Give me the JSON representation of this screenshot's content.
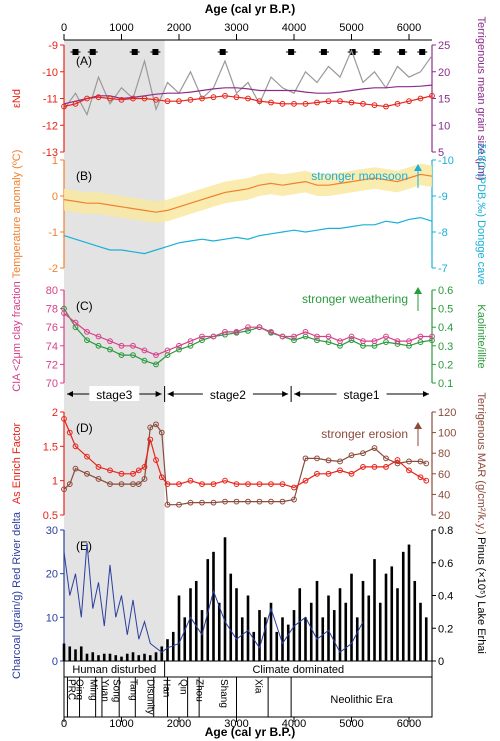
{
  "figure": {
    "x_axis": {
      "label_top": "Age (cal yr B.P.)",
      "label_bottom": "Age (cal yr B.P.)",
      "range": [
        0,
        6400
      ],
      "ticks": [
        0,
        1000,
        2000,
        3000,
        4000,
        5000,
        6000
      ],
      "tick_labels": [
        "0",
        "1000",
        "2000",
        "3000",
        "4000",
        "5000",
        "6000"
      ]
    },
    "shaded_band": {
      "from": 0,
      "to": 1750,
      "color": "#e3e3e3"
    },
    "dating_markers": [
      200,
      500,
      1230,
      1590,
      2760,
      3950,
      4520,
      5020,
      5440,
      5880,
      6230
    ],
    "stage_labels": [
      "stage3",
      "stage2",
      "stage1"
    ]
  },
  "panels": {
    "A": {
      "label": "(A)",
      "left_axis": {
        "label": "εNd",
        "color": "#e8231a",
        "range": [
          -13,
          -9
        ],
        "ticks": [
          "-9",
          "-10",
          "-11",
          "-12",
          "-13"
        ]
      },
      "right_axis": {
        "label": "Terrigenous mean grain size (μm)",
        "color": "#8b2d8b",
        "range": [
          5,
          25
        ],
        "ticks": [
          "25",
          "20",
          "15",
          "10",
          "5"
        ]
      }
    },
    "B": {
      "label": "(B)",
      "annotation": "stronger monsoon",
      "left_axis": {
        "label": "Temperature anomaly (ºC)",
        "color": "#f08030",
        "range": [
          -2,
          1
        ],
        "ticks": [
          "1",
          "0",
          "-1",
          "-2"
        ]
      },
      "right_axis": {
        "label": "δ18O (PDB,‰) Dongge cave",
        "color": "#1ab0d8",
        "range": [
          -10,
          -7
        ],
        "ticks": [
          "-10",
          "-9",
          "-8",
          "-7"
        ]
      }
    },
    "C": {
      "label": "(C)",
      "annotation": "stronger weathering",
      "left_axis": {
        "label": "CIA <2μm clay fraction",
        "color": "#d8408c",
        "range": [
          70,
          80
        ],
        "ticks": [
          "80",
          "78",
          "76",
          "74",
          "72",
          "70"
        ]
      },
      "right_axis": {
        "label": "Kaolinite/illite",
        "color": "#2a9a3c",
        "range": [
          0.1,
          0.6
        ],
        "ticks": [
          "0.6",
          "0.5",
          "0.4",
          "0.3",
          "0.2",
          "0.1"
        ]
      }
    },
    "D": {
      "label": "(D)",
      "annotation": "stronger erosion",
      "left_axis": {
        "label": "As Enrich Factor",
        "color": "#e8231a",
        "range": [
          0.5,
          2
        ],
        "ticks": [
          "2",
          "1.5",
          "1",
          "0.5"
        ]
      },
      "right_axis": {
        "label": "Terrigenous MAR (g/cm²/k.y.)",
        "color": "#8b4a3a",
        "range": [
          20,
          120
        ],
        "ticks": [
          "120",
          "100",
          "80",
          "60",
          "40",
          "20"
        ]
      }
    },
    "E": {
      "label": "(E)",
      "left_axis": {
        "label": "Charcoal (grain/g) Red River delta",
        "color": "#2b3f9e",
        "range": [
          0,
          30
        ],
        "ticks": [
          "30",
          "20",
          "10",
          "0"
        ]
      },
      "right_axis": {
        "label": "Pinus (×10⁵) Lake Erhai",
        "color": "#000000",
        "range": [
          0,
          0.9
        ],
        "ticks": [
          "0.8",
          "0.6",
          "0.4",
          "0.2",
          "0"
        ]
      },
      "periods_top": [
        "Human disturbed",
        "Climate dominated"
      ],
      "dynasties": [
        "PRC",
        "Qing",
        "Ming",
        "Yuan",
        "Song",
        "Tang",
        "Disunity",
        "Han",
        "Qin",
        "Zhou",
        "Shang",
        "Xia",
        "Neolithic Era"
      ]
    }
  },
  "chart_data": [
    {
      "type": "line",
      "panel": "A",
      "x": [
        0,
        200,
        400,
        600,
        800,
        1000,
        1200,
        1400,
        1600,
        1800,
        2000,
        2200,
        2400,
        2600,
        2800,
        3000,
        3200,
        3400,
        3600,
        3800,
        4000,
        4200,
        4400,
        4600,
        4800,
        5000,
        5200,
        5400,
        5600,
        5800,
        6000,
        6200,
        6400
      ],
      "series": [
        {
          "name": "εNd",
          "color": "#e8231a",
          "axis": "left",
          "values": [
            -11.3,
            -11.2,
            -11.0,
            -10.95,
            -11.0,
            -11.05,
            -11.0,
            -11.0,
            -11.05,
            -11.1,
            -11.1,
            -11.05,
            -11.0,
            -10.95,
            -10.9,
            -10.95,
            -11.0,
            -11.1,
            -11.15,
            -11.2,
            -11.2,
            -11.2,
            -11.15,
            -11.1,
            -11.1,
            -11.15,
            -11.2,
            -11.25,
            -11.3,
            -11.2,
            -11.1,
            -11.0,
            -10.9
          ]
        },
        {
          "name": "Terrigenous mean grain size",
          "color": "#8b2d8b",
          "axis": "right",
          "values": [
            14.0,
            14.5,
            15.0,
            15.5,
            15.5,
            15.0,
            15.2,
            15.5,
            15.8,
            16.0,
            16.0,
            16.2,
            16.5,
            16.8,
            17.0,
            17.0,
            16.8,
            16.5,
            16.5,
            16.5,
            16.5,
            16.2,
            16.0,
            16.0,
            16.2,
            16.5,
            16.8,
            17.0,
            17.0,
            17.2,
            17.2,
            17.3,
            17.5
          ]
        },
        {
          "name": "grain size (raw)",
          "color": "#999999",
          "axis": "right",
          "values": [
            13,
            16,
            12,
            19,
            14,
            17,
            15,
            22,
            13,
            18,
            16,
            20,
            15,
            17,
            22,
            16,
            18,
            14,
            19,
            17,
            16,
            20,
            18,
            21,
            19,
            24,
            18,
            20,
            17,
            21,
            19,
            20,
            23
          ]
        }
      ]
    },
    {
      "type": "line",
      "panel": "B",
      "x": [
        0,
        200,
        400,
        600,
        800,
        1000,
        1200,
        1400,
        1600,
        1800,
        2000,
        2200,
        2400,
        2600,
        2800,
        3000,
        3200,
        3400,
        3600,
        3800,
        4000,
        4200,
        4400,
        4600,
        4800,
        5000,
        5200,
        5400,
        5600,
        5800,
        6000,
        6200,
        6400
      ],
      "series": [
        {
          "name": "Temperature anomaly",
          "color": "#f08030",
          "axis": "left",
          "values": [
            -0.1,
            -0.15,
            -0.2,
            -0.2,
            -0.25,
            -0.3,
            -0.35,
            -0.4,
            -0.45,
            -0.4,
            -0.3,
            -0.2,
            -0.1,
            0.0,
            0.1,
            0.15,
            0.2,
            0.3,
            0.35,
            0.3,
            0.35,
            0.4,
            0.3,
            0.3,
            0.35,
            0.4,
            0.45,
            0.5,
            0.45,
            0.4,
            0.5,
            0.6,
            0.55
          ]
        },
        {
          "name": "δ18O Dongge cave",
          "color": "#1ab0d8",
          "axis": "right",
          "values": [
            -7.9,
            -7.8,
            -7.7,
            -7.6,
            -7.5,
            -7.5,
            -7.45,
            -7.4,
            -7.5,
            -7.6,
            -7.7,
            -7.75,
            -7.8,
            -7.75,
            -7.8,
            -7.85,
            -7.8,
            -7.9,
            -7.95,
            -8.0,
            -8.05,
            -8.0,
            -8.05,
            -8.1,
            -8.1,
            -8.15,
            -8.2,
            -8.2,
            -8.3,
            -8.25,
            -8.35,
            -8.4,
            -8.3
          ]
        }
      ]
    },
    {
      "type": "line",
      "panel": "C",
      "x": [
        0,
        200,
        400,
        600,
        800,
        1000,
        1200,
        1400,
        1600,
        1800,
        2000,
        2200,
        2400,
        2600,
        2800,
        3000,
        3200,
        3400,
        3600,
        3800,
        4000,
        4200,
        4400,
        4600,
        4800,
        5000,
        5200,
        5400,
        5600,
        5800,
        6000,
        6200,
        6400
      ],
      "series": [
        {
          "name": "CIA <2μm clay fraction",
          "color": "#d8408c",
          "axis": "left",
          "values": [
            77.5,
            76.5,
            75.5,
            75.0,
            74.5,
            74.0,
            74.0,
            73.5,
            73.0,
            73.5,
            74.0,
            74.5,
            75.0,
            75.0,
            75.5,
            75.5,
            76.0,
            76.0,
            75.5,
            75.0,
            75.0,
            75.5,
            75.0,
            75.0,
            74.5,
            75.0,
            74.5,
            74.5,
            75.0,
            74.5,
            74.5,
            75.0,
            75.0
          ]
        },
        {
          "name": "Kaolinite/illite",
          "color": "#2a9a3c",
          "axis": "right",
          "values": [
            0.5,
            0.4,
            0.33,
            0.3,
            0.28,
            0.25,
            0.25,
            0.22,
            0.2,
            0.25,
            0.28,
            0.3,
            0.33,
            0.35,
            0.36,
            0.37,
            0.38,
            0.4,
            0.37,
            0.35,
            0.33,
            0.35,
            0.33,
            0.32,
            0.3,
            0.33,
            0.3,
            0.3,
            0.32,
            0.31,
            0.3,
            0.32,
            0.33
          ]
        }
      ]
    },
    {
      "type": "line",
      "panel": "D",
      "x": [
        0,
        100,
        200,
        400,
        600,
        800,
        1000,
        1200,
        1300,
        1400,
        1500,
        1600,
        1700,
        1800,
        2000,
        2200,
        2400,
        2600,
        2800,
        3000,
        3200,
        3400,
        3600,
        3800,
        4000,
        4200,
        4400,
        4600,
        4800,
        5000,
        5200,
        5400,
        5600,
        5800,
        6000,
        6200,
        6300
      ],
      "series": [
        {
          "name": "As Enrich Factor",
          "color": "#e8231a",
          "axis": "left",
          "values": [
            1.9,
            1.7,
            1.5,
            1.35,
            1.2,
            1.15,
            1.1,
            1.1,
            1.15,
            1.2,
            1.6,
            1.3,
            1.05,
            0.95,
            0.95,
            1.0,
            0.95,
            0.95,
            1.0,
            0.95,
            0.95,
            0.95,
            0.95,
            0.95,
            0.9,
            1.0,
            1.1,
            1.1,
            1.15,
            1.1,
            1.2,
            1.2,
            1.2,
            1.3,
            1.15,
            1.05,
            1.0
          ]
        },
        {
          "name": "Terrigenous MAR",
          "color": "#8b4a3a",
          "axis": "right",
          "values": [
            45,
            50,
            65,
            60,
            55,
            50,
            50,
            50,
            50,
            55,
            105,
            108,
            100,
            30,
            30,
            32,
            32,
            32,
            33,
            33,
            33,
            33,
            33,
            33,
            35,
            75,
            75,
            73,
            72,
            78,
            80,
            85,
            75,
            70,
            72,
            72,
            70
          ]
        }
      ]
    },
    {
      "type": "bar",
      "panel": "E",
      "series": [
        {
          "name": "Charcoal Red River delta",
          "color": "#2b3f9e",
          "axis": "left",
          "kind": "line",
          "x": [
            0,
            100,
            200,
            300,
            400,
            500,
            600,
            700,
            800,
            900,
            1000,
            1100,
            1200,
            1300,
            1400,
            1500,
            1600,
            1700,
            1800,
            2000,
            2200,
            2400,
            2600,
            2800,
            3000,
            3200,
            3400,
            3600,
            3800,
            4000,
            4200,
            4400,
            4600,
            4800,
            5000,
            5200
          ],
          "values": [
            25,
            15,
            20,
            10,
            27,
            12,
            18,
            8,
            22,
            10,
            15,
            6,
            14,
            5,
            9,
            4,
            3,
            2,
            3,
            4,
            10,
            6,
            16,
            9,
            5,
            7,
            3,
            12,
            4,
            8,
            10,
            5,
            7,
            2,
            4,
            9
          ]
        },
        {
          "name": "Pinus Lake Erhai",
          "color": "#000000",
          "axis": "right",
          "kind": "bars",
          "x": [
            0,
            100,
            200,
            300,
            400,
            500,
            600,
            700,
            800,
            900,
            1000,
            1100,
            1200,
            1300,
            1400,
            1500,
            1600,
            1700,
            1800,
            1900,
            2000,
            2100,
            2200,
            2300,
            2400,
            2500,
            2600,
            2700,
            2800,
            2900,
            3000,
            3100,
            3200,
            3300,
            3400,
            3500,
            3600,
            3700,
            3800,
            3900,
            4000,
            4100,
            4200,
            4300,
            4400,
            4500,
            4600,
            4700,
            4800,
            4900,
            5000,
            5100,
            5200,
            5300,
            5400,
            5500,
            5600,
            5700,
            5800,
            5900,
            6000,
            6100,
            6200,
            6300
          ],
          "values": [
            0.12,
            0.1,
            0.08,
            0.1,
            0.05,
            0.06,
            0.04,
            0.05,
            0.05,
            0.04,
            0.03,
            0.05,
            0.06,
            0.04,
            0.05,
            0.04,
            0.06,
            0.1,
            0.15,
            0.2,
            0.45,
            0.3,
            0.5,
            0.55,
            0.35,
            0.7,
            0.75,
            0.4,
            0.85,
            0.6,
            0.5,
            0.3,
            0.45,
            0.2,
            0.35,
            0.3,
            0.4,
            0.2,
            0.3,
            0.25,
            0.35,
            0.5,
            0.3,
            0.4,
            0.55,
            0.3,
            0.45,
            0.35,
            0.5,
            0.4,
            0.6,
            0.3,
            0.55,
            0.45,
            0.7,
            0.4,
            0.6,
            0.65,
            0.5,
            0.75,
            0.8,
            0.55,
            0.4,
            0.3
          ]
        }
      ]
    }
  ]
}
